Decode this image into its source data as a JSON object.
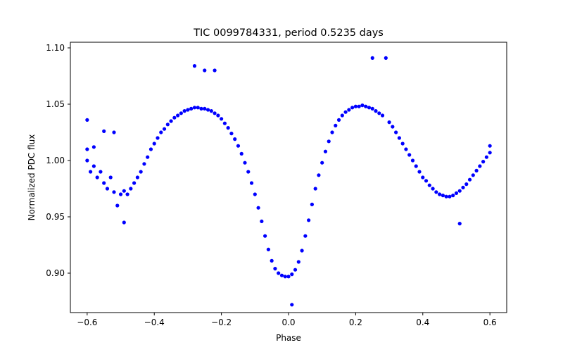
{
  "chart_data": {
    "type": "scatter",
    "title": "TIC 0099784331, period 0.5235 days",
    "xlabel": "Phase",
    "ylabel": "Normalized PDC flux",
    "xlim": [
      -0.65,
      0.65
    ],
    "ylim": [
      0.865,
      1.105
    ],
    "xticks": [
      -0.6,
      -0.4,
      -0.2,
      0.0,
      0.2,
      0.4,
      0.6
    ],
    "xtick_labels": [
      "−0.6",
      "−0.4",
      "−0.2",
      "0.0",
      "0.2",
      "0.4",
      "0.6"
    ],
    "yticks": [
      0.9,
      0.95,
      1.0,
      1.05,
      1.1
    ],
    "ytick_labels": [
      "0.90",
      "0.95",
      "1.00",
      "1.05",
      "1.10"
    ],
    "grid": false,
    "marker_color": "#0000ff",
    "series": [
      {
        "points": [
          [
            -0.6,
            1.0
          ],
          [
            -0.6,
            1.01
          ],
          [
            -0.6,
            1.036
          ],
          [
            -0.59,
            0.99
          ],
          [
            -0.58,
            1.012
          ],
          [
            -0.58,
            0.995
          ],
          [
            -0.57,
            0.985
          ],
          [
            -0.56,
            0.99
          ],
          [
            -0.55,
            1.026
          ],
          [
            -0.55,
            0.98
          ],
          [
            -0.54,
            0.975
          ],
          [
            -0.53,
            0.985
          ],
          [
            -0.52,
            1.025
          ],
          [
            -0.52,
            0.972
          ],
          [
            -0.51,
            0.96
          ],
          [
            -0.5,
            0.97
          ],
          [
            -0.49,
            0.973
          ],
          [
            -0.49,
            0.945
          ],
          [
            -0.48,
            0.97
          ],
          [
            -0.47,
            0.975
          ],
          [
            -0.46,
            0.98
          ],
          [
            -0.45,
            0.985
          ],
          [
            -0.44,
            0.99
          ],
          [
            -0.43,
            0.997
          ],
          [
            -0.42,
            1.003
          ],
          [
            -0.41,
            1.01
          ],
          [
            -0.4,
            1.015
          ],
          [
            -0.39,
            1.02
          ],
          [
            -0.38,
            1.025
          ],
          [
            -0.37,
            1.028
          ],
          [
            -0.36,
            1.032
          ],
          [
            -0.35,
            1.035
          ],
          [
            -0.34,
            1.038
          ],
          [
            -0.33,
            1.04
          ],
          [
            -0.32,
            1.042
          ],
          [
            -0.31,
            1.044
          ],
          [
            -0.3,
            1.045
          ],
          [
            -0.29,
            1.046
          ],
          [
            -0.28,
            1.047
          ],
          [
            -0.28,
            1.084
          ],
          [
            -0.27,
            1.047
          ],
          [
            -0.26,
            1.046
          ],
          [
            -0.25,
            1.046
          ],
          [
            -0.25,
            1.08
          ],
          [
            -0.24,
            1.045
          ],
          [
            -0.23,
            1.044
          ],
          [
            -0.22,
            1.042
          ],
          [
            -0.22,
            1.08
          ],
          [
            -0.21,
            1.04
          ],
          [
            -0.2,
            1.037
          ],
          [
            -0.19,
            1.033
          ],
          [
            -0.18,
            1.029
          ],
          [
            -0.17,
            1.024
          ],
          [
            -0.16,
            1.019
          ],
          [
            -0.15,
            1.013
          ],
          [
            -0.14,
            1.006
          ],
          [
            -0.13,
            0.998
          ],
          [
            -0.12,
            0.99
          ],
          [
            -0.11,
            0.98
          ],
          [
            -0.1,
            0.97
          ],
          [
            -0.09,
            0.958
          ],
          [
            -0.08,
            0.946
          ],
          [
            -0.07,
            0.933
          ],
          [
            -0.06,
            0.921
          ],
          [
            -0.05,
            0.911
          ],
          [
            -0.04,
            0.904
          ],
          [
            -0.03,
            0.9
          ],
          [
            -0.02,
            0.898
          ],
          [
            -0.01,
            0.897
          ],
          [
            0.0,
            0.897
          ],
          [
            0.01,
            0.899
          ],
          [
            0.01,
            0.872
          ],
          [
            0.02,
            0.903
          ],
          [
            0.03,
            0.91
          ],
          [
            0.04,
            0.92
          ],
          [
            0.05,
            0.933
          ],
          [
            0.06,
            0.947
          ],
          [
            0.07,
            0.961
          ],
          [
            0.08,
            0.975
          ],
          [
            0.09,
            0.987
          ],
          [
            0.1,
            0.998
          ],
          [
            0.11,
            1.008
          ],
          [
            0.12,
            1.017
          ],
          [
            0.13,
            1.025
          ],
          [
            0.14,
            1.031
          ],
          [
            0.15,
            1.036
          ],
          [
            0.16,
            1.04
          ],
          [
            0.17,
            1.043
          ],
          [
            0.18,
            1.045
          ],
          [
            0.19,
            1.047
          ],
          [
            0.2,
            1.048
          ],
          [
            0.21,
            1.048
          ],
          [
            0.22,
            1.049
          ],
          [
            0.23,
            1.048
          ],
          [
            0.24,
            1.047
          ],
          [
            0.25,
            1.046
          ],
          [
            0.25,
            1.091
          ],
          [
            0.26,
            1.044
          ],
          [
            0.27,
            1.042
          ],
          [
            0.28,
            1.04
          ],
          [
            0.29,
            1.091
          ],
          [
            0.3,
            1.034
          ],
          [
            0.31,
            1.03
          ],
          [
            0.32,
            1.025
          ],
          [
            0.33,
            1.02
          ],
          [
            0.34,
            1.015
          ],
          [
            0.35,
            1.01
          ],
          [
            0.36,
            1.005
          ],
          [
            0.37,
            1.0
          ],
          [
            0.38,
            0.995
          ],
          [
            0.39,
            0.99
          ],
          [
            0.4,
            0.985
          ],
          [
            0.41,
            0.982
          ],
          [
            0.42,
            0.978
          ],
          [
            0.43,
            0.975
          ],
          [
            0.44,
            0.972
          ],
          [
            0.45,
            0.97
          ],
          [
            0.46,
            0.969
          ],
          [
            0.47,
            0.968
          ],
          [
            0.48,
            0.968
          ],
          [
            0.49,
            0.969
          ],
          [
            0.5,
            0.971
          ],
          [
            0.51,
            0.973
          ],
          [
            0.51,
            0.944
          ],
          [
            0.52,
            0.976
          ],
          [
            0.53,
            0.979
          ],
          [
            0.54,
            0.983
          ],
          [
            0.55,
            0.987
          ],
          [
            0.56,
            0.991
          ],
          [
            0.57,
            0.995
          ],
          [
            0.58,
            0.999
          ],
          [
            0.59,
            1.003
          ],
          [
            0.6,
            1.007
          ],
          [
            0.6,
            1.013
          ]
        ]
      }
    ]
  }
}
